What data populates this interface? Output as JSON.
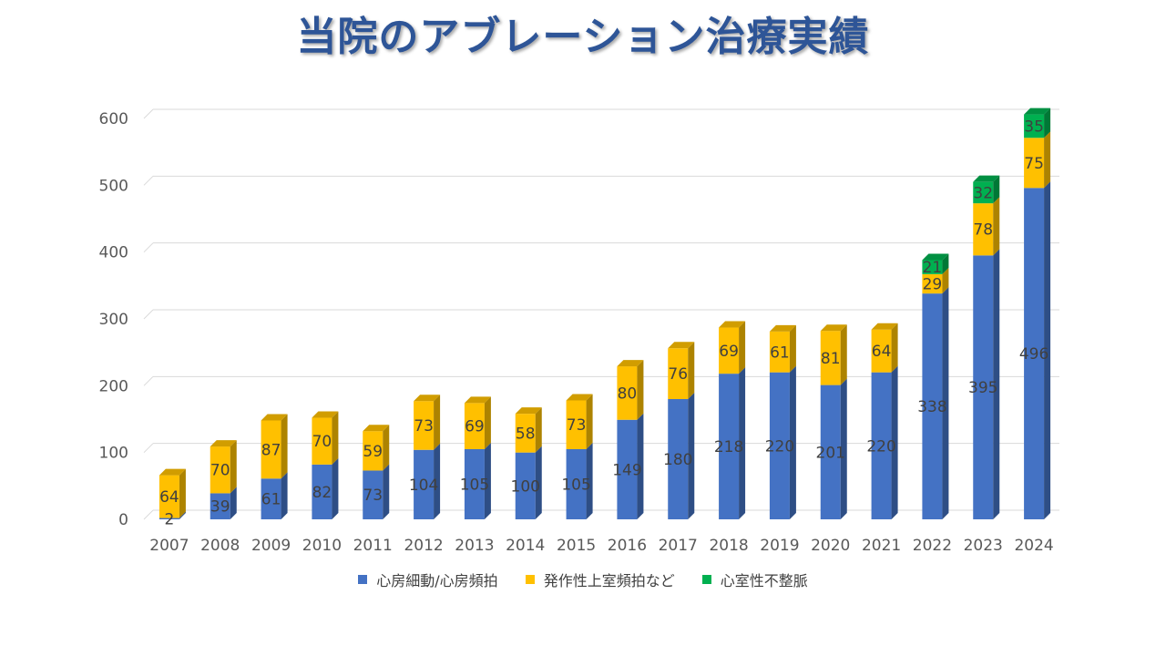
{
  "chart_data": {
    "type": "bar",
    "stacked": true,
    "title": "当院のアブレーション治療実績",
    "categories": [
      "2007",
      "2008",
      "2009",
      "2010",
      "2011",
      "2012",
      "2013",
      "2014",
      "2015",
      "2016",
      "2017",
      "2018",
      "2019",
      "2020",
      "2021",
      "2022",
      "2023",
      "2024"
    ],
    "series": [
      {
        "name": "心房細動/心房頻拍",
        "color": "#4472c4",
        "values": [
          2,
          39,
          61,
          82,
          73,
          104,
          105,
          100,
          105,
          149,
          180,
          218,
          220,
          201,
          220,
          338,
          395,
          496
        ]
      },
      {
        "name": "発作性上室頻拍など",
        "color": "#ffc000",
        "values": [
          64,
          70,
          87,
          70,
          59,
          73,
          69,
          58,
          73,
          80,
          76,
          69,
          61,
          81,
          64,
          29,
          78,
          75
        ]
      },
      {
        "name": "心室性不整脈",
        "color": "#00b050",
        "values": [
          null,
          null,
          null,
          null,
          null,
          null,
          null,
          null,
          null,
          null,
          null,
          null,
          null,
          null,
          null,
          21,
          32,
          35
        ]
      }
    ],
    "y_ticks": [
      "0",
      "100",
      "200",
      "300",
      "400",
      "500",
      "600"
    ],
    "ylim": [
      0,
      600
    ],
    "grid": true,
    "legend_position": "bottom"
  }
}
